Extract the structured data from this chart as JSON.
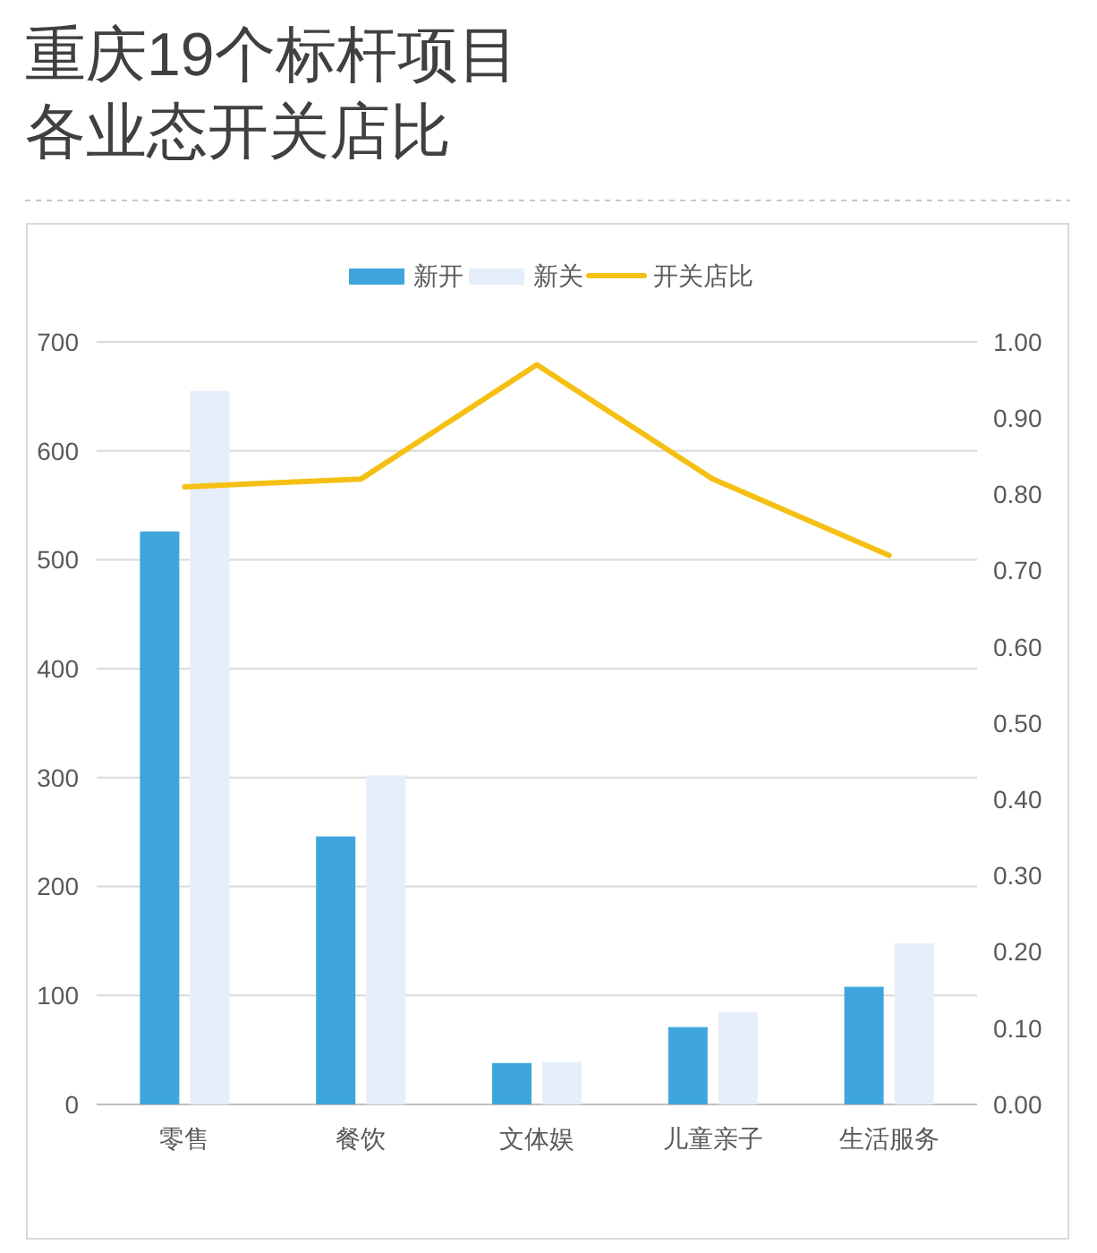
{
  "chart_data": {
    "type": "bar",
    "title": "重庆19个标杆项目各业态开关店比",
    "categories": [
      "零售",
      "餐饮",
      "文体娱",
      "儿童亲子",
      "生活服务"
    ],
    "series": [
      {
        "name": "新开",
        "color": "#3ea6dc",
        "values": [
          526,
          246,
          38,
          71,
          108
        ]
      },
      {
        "name": "新关",
        "color": "#e6edfb",
        "values": [
          655,
          302,
          39,
          85,
          148
        ]
      },
      {
        "name": "开关店比",
        "type": "line",
        "axis": "y2",
        "color": "#f5c013",
        "values": [
          0.81,
          0.82,
          0.97,
          0.82,
          0.72
        ]
      }
    ],
    "ylim": [
      0,
      700
    ],
    "yticks": [
      0,
      100,
      200,
      300,
      400,
      500,
      600,
      700
    ],
    "y2lim": [
      0,
      1
    ],
    "y2ticks": [
      {
        "value": 0,
        "label": "0.00"
      },
      {
        "value": 0.1,
        "label": "0.10"
      },
      {
        "value": 0.2,
        "label": "0.20"
      },
      {
        "value": 0.3,
        "label": "0.30"
      },
      {
        "value": 0.4,
        "label": "0.40"
      },
      {
        "value": 0.5,
        "label": "0.50"
      },
      {
        "value": 0.6,
        "label": "0.60"
      },
      {
        "value": 0.7,
        "label": "0.70"
      },
      {
        "value": 0.8,
        "label": "0.80"
      },
      {
        "value": 0.9,
        "label": "0.90"
      },
      {
        "value": 1,
        "label": "1.00"
      }
    ],
    "grid": "y",
    "legend": "top",
    "marker": "none",
    "line_style": "solid"
  }
}
